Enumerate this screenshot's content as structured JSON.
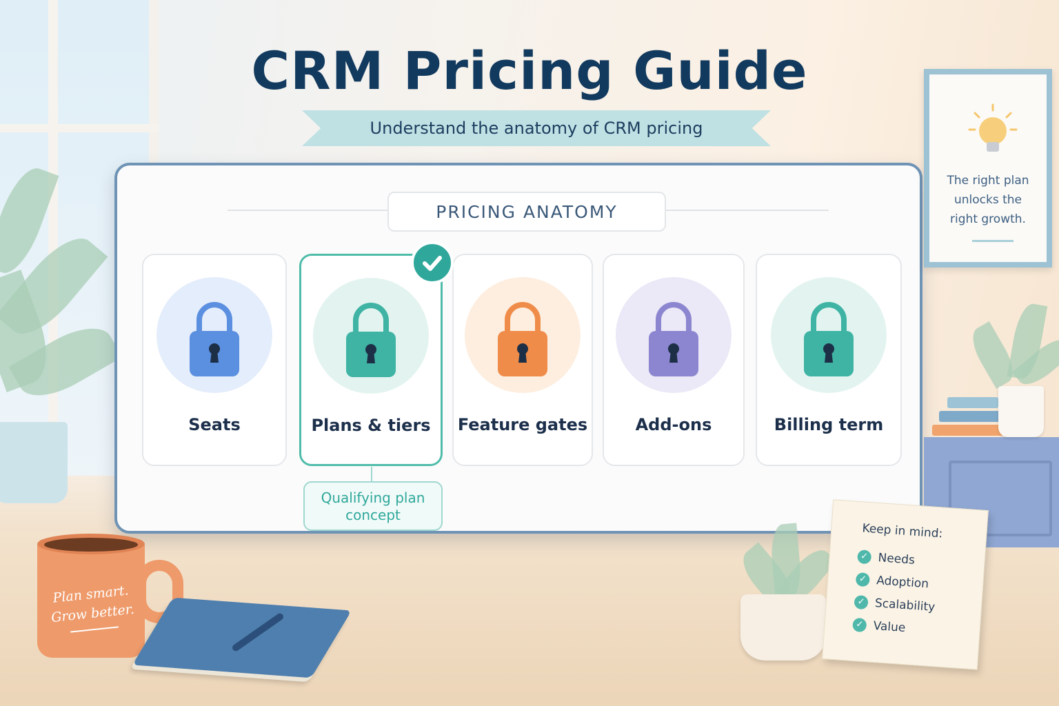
{
  "header": {
    "title": "CRM Pricing Guide",
    "subtitle": "Understand the anatomy of CRM pricing"
  },
  "board": {
    "section_label": "PRICING ANATOMY",
    "cards": [
      {
        "label": "Seats",
        "color": "#5b8fe0",
        "bg": "#e4edfb",
        "selected": false
      },
      {
        "label": "Plans & tiers",
        "color": "#3fb3a4",
        "bg": "#e3f4f0",
        "selected": true
      },
      {
        "label": "Feature gates",
        "color": "#f08c4a",
        "bg": "#fdeedf",
        "selected": false
      },
      {
        "label": "Add-ons",
        "color": "#8b86cf",
        "bg": "#ebe8f7",
        "selected": false
      },
      {
        "label": "Billing term",
        "color": "#3fb3a4",
        "bg": "#e3f4f0",
        "selected": false
      }
    ],
    "callout": {
      "line1": "Qualifying plan",
      "line2": "concept"
    }
  },
  "frame": {
    "line1": "The right plan",
    "line2": "unlocks the",
    "line3": "right growth."
  },
  "mug": {
    "line1": "Plan smart.",
    "line2": "Grow better."
  },
  "sign": {
    "heading": "Keep in mind:",
    "items": [
      "Needs",
      "Adoption",
      "Scalability",
      "Value"
    ]
  }
}
